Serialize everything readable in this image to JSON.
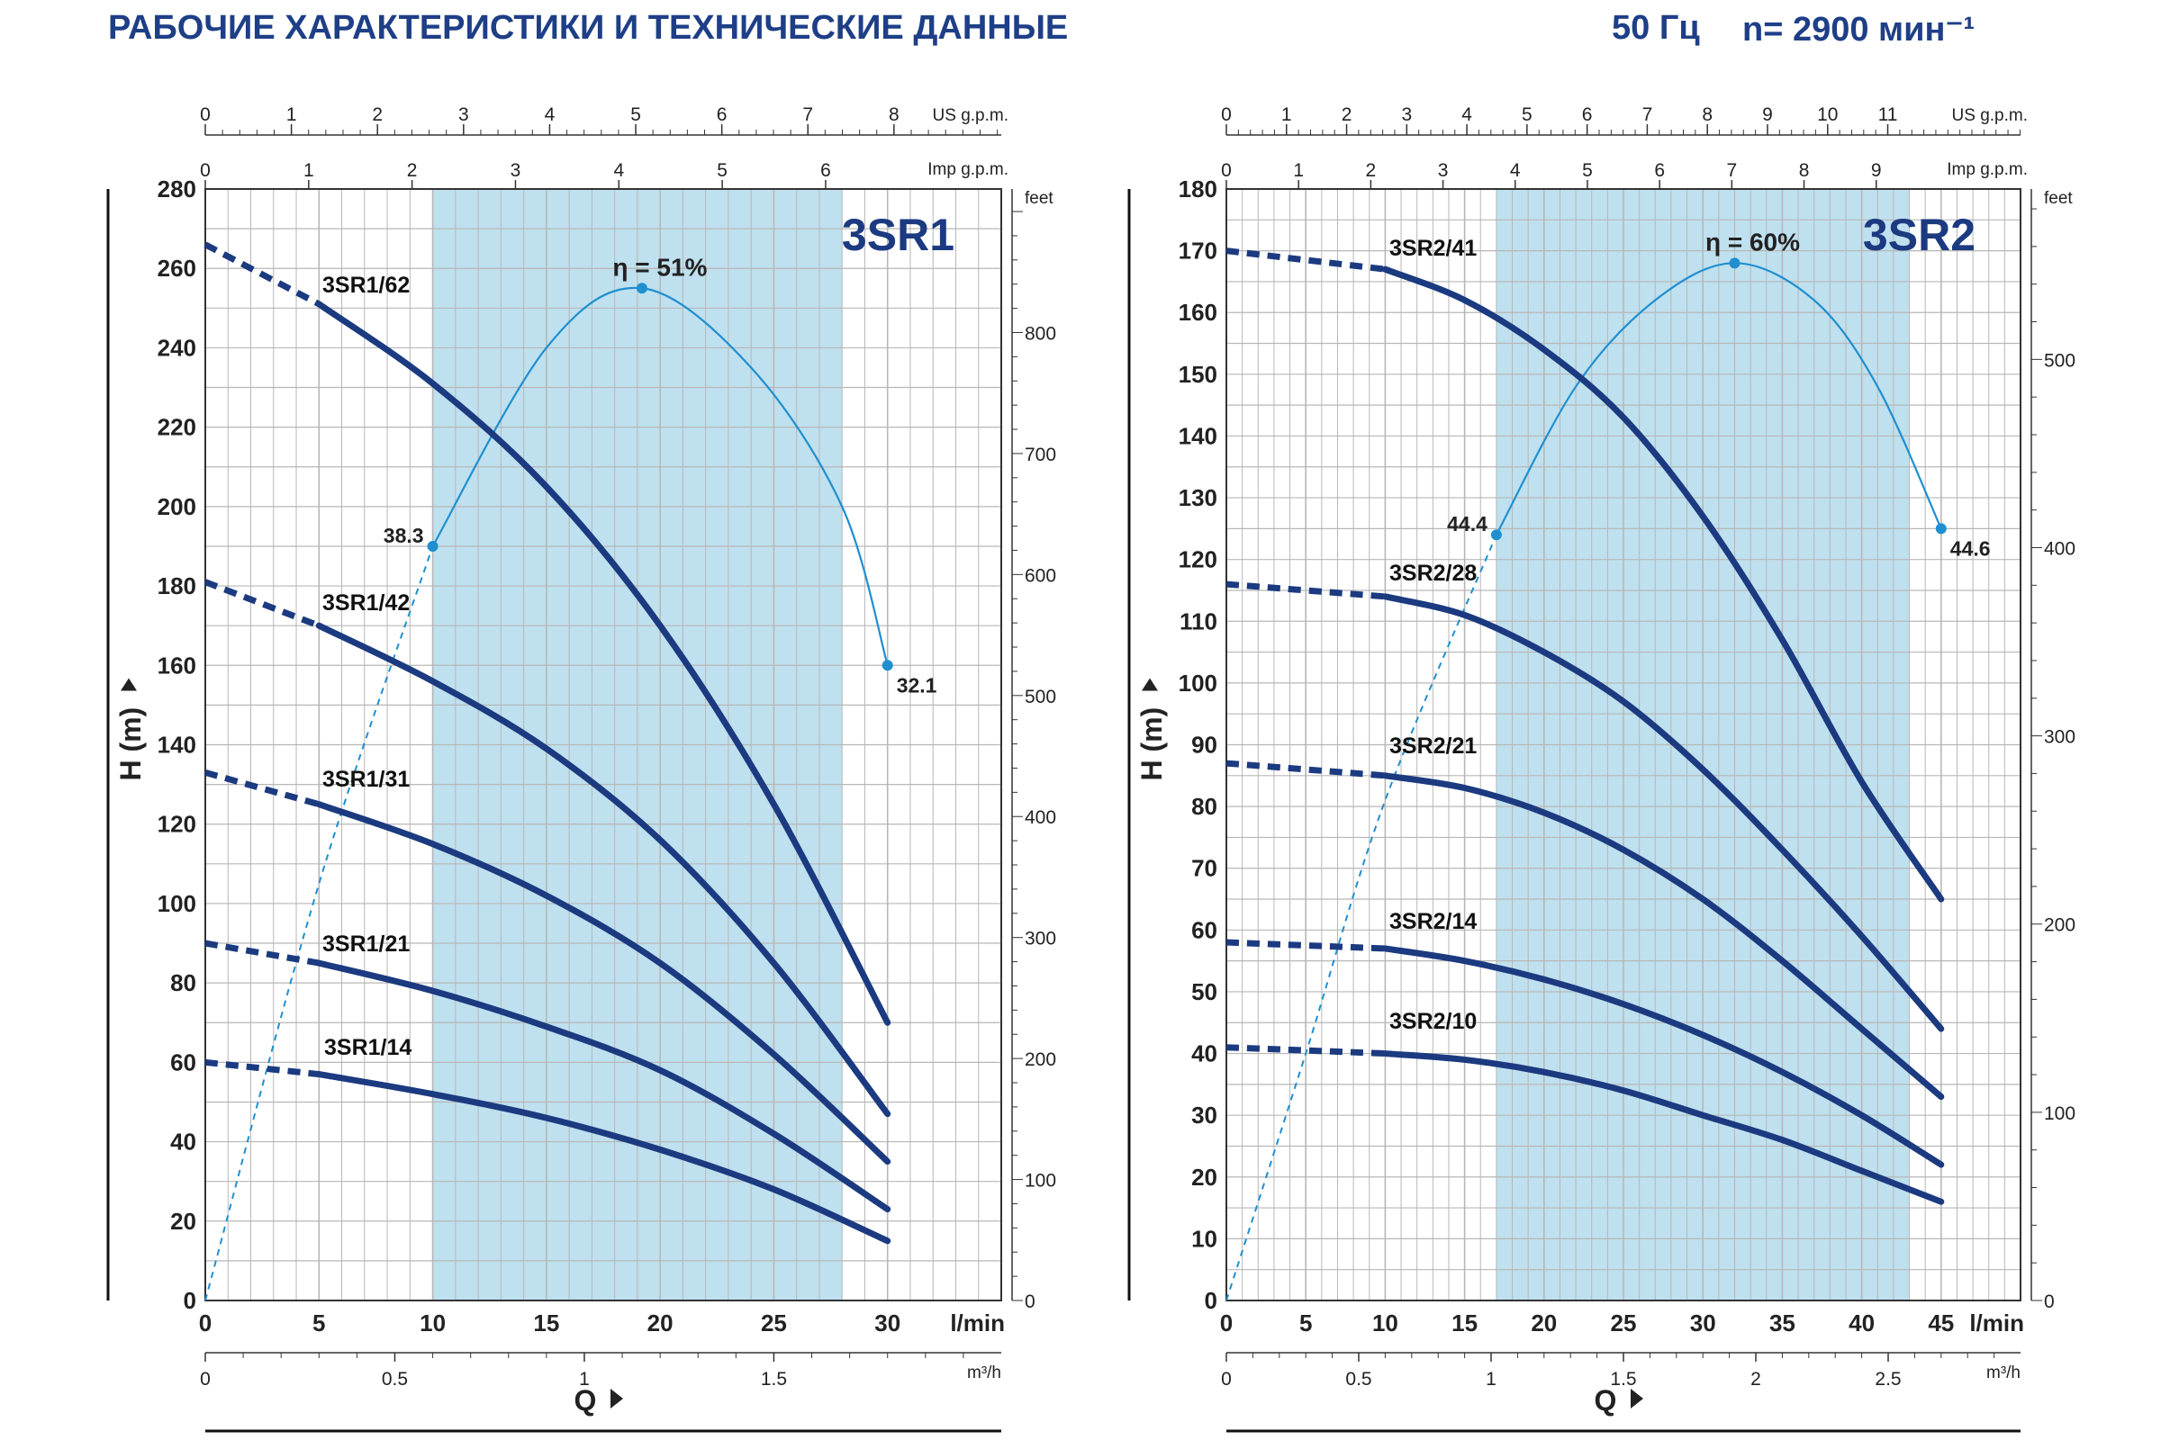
{
  "header": {
    "title": "РАБОЧИЕ ХАРАКТЕРИСТИКИ И ТЕХНИЧЕСКИЕ ДАННЫЕ",
    "frequency": "50 Гц",
    "speed": "n= 2900 мин⁻¹"
  },
  "colors": {
    "curve": "#1b3a80",
    "efficiency": "#1f8fd0",
    "shade": "#bfe0ee",
    "grid": "#b7b7b7",
    "text": "#222222"
  },
  "chart_data": [
    {
      "type": "line",
      "title": "3SR1",
      "ylabel": "H (m)",
      "xlabel": "Q",
      "x_unit": "l/min",
      "xlim": [
        0,
        35
      ],
      "ylim": [
        0,
        280
      ],
      "yticks": [
        0,
        20,
        40,
        60,
        80,
        100,
        120,
        140,
        160,
        180,
        200,
        220,
        240,
        260,
        280
      ],
      "xticks": [
        0,
        5,
        10,
        15,
        20,
        25,
        30
      ],
      "secondary_axes": {
        "us_gpm": {
          "label": "US g.p.m.",
          "ticks": [
            0,
            1,
            2,
            3,
            4,
            5,
            6,
            7,
            8
          ]
        },
        "imp_gpm": {
          "label": "Imp g.p.m.",
          "ticks": [
            0,
            1,
            2,
            3,
            4,
            5,
            6
          ]
        },
        "m3h": {
          "label": "m³/h",
          "ticks": [
            0,
            0.5,
            1,
            1.5
          ]
        },
        "feet": {
          "label": "feet",
          "ticks": [
            0,
            100,
            200,
            300,
            400,
            500,
            600,
            700,
            800
          ]
        }
      },
      "recommended_range": [
        10,
        28
      ],
      "series": [
        {
          "name": "3SR1/62",
          "x": [
            0,
            5,
            10,
            15,
            20,
            25,
            30
          ],
          "y": [
            266,
            251,
            231,
            205,
            170,
            125,
            70
          ]
        },
        {
          "name": "3SR1/42",
          "x": [
            0,
            5,
            10,
            15,
            20,
            25,
            30
          ],
          "y": [
            181,
            170,
            156,
            139,
            116,
            85,
            47
          ]
        },
        {
          "name": "3SR1/31",
          "x": [
            0,
            5,
            10,
            15,
            20,
            25,
            30
          ],
          "y": [
            133,
            125,
            115,
            102,
            85,
            62,
            35
          ]
        },
        {
          "name": "3SR1/21",
          "x": [
            0,
            5,
            10,
            15,
            20,
            25,
            30
          ],
          "y": [
            90,
            85,
            78,
            69,
            58,
            42,
            23
          ]
        },
        {
          "name": "3SR1/14",
          "x": [
            0,
            5,
            10,
            15,
            20,
            25,
            30
          ],
          "y": [
            60,
            57,
            52,
            46,
            38,
            28,
            15
          ]
        }
      ],
      "efficiency": {
        "x": [
          0,
          5,
          10,
          15,
          19.2,
          24,
          28,
          30
        ],
        "y": [
          0,
          105,
          190,
          240,
          255,
          235,
          200,
          160
        ],
        "peak_label": "η = 51%",
        "points": [
          {
            "x": 10,
            "y": 190,
            "label": "38.3"
          },
          {
            "x": 19.2,
            "y": 255,
            "label": ""
          },
          {
            "x": 30,
            "y": 160,
            "label": "32.1"
          }
        ]
      }
    },
    {
      "type": "line",
      "title": "3SR2",
      "ylabel": "H (m)",
      "xlabel": "Q",
      "x_unit": "l/min",
      "xlim": [
        0,
        50
      ],
      "ylim": [
        0,
        180
      ],
      "yticks": [
        0,
        10,
        20,
        30,
        40,
        50,
        60,
        70,
        80,
        90,
        100,
        110,
        120,
        130,
        140,
        150,
        160,
        170,
        180
      ],
      "xticks": [
        0,
        5,
        10,
        15,
        20,
        25,
        30,
        35,
        40,
        45
      ],
      "secondary_axes": {
        "us_gpm": {
          "label": "US g.p.m.",
          "ticks": [
            0,
            1,
            2,
            3,
            4,
            5,
            6,
            7,
            8,
            9,
            10,
            11
          ]
        },
        "imp_gpm": {
          "label": "Imp g.p.m.",
          "ticks": [
            0,
            1,
            2,
            3,
            4,
            5,
            6,
            7,
            8,
            9
          ]
        },
        "m3h": {
          "label": "m³/h",
          "ticks": [
            0,
            0.5,
            1,
            1.5,
            2,
            2.5
          ]
        },
        "feet": {
          "label": "feet",
          "ticks": [
            0,
            100,
            200,
            300,
            400,
            500
          ]
        }
      },
      "recommended_range": [
        17,
        43
      ],
      "series": [
        {
          "name": "3SR2/41",
          "x": [
            0,
            10,
            15,
            20,
            25,
            30,
            35,
            40,
            45
          ],
          "y": [
            170,
            167,
            162,
            154,
            143,
            127,
            107,
            84,
            65
          ]
        },
        {
          "name": "3SR2/28",
          "x": [
            0,
            10,
            15,
            20,
            25,
            30,
            35,
            40,
            45
          ],
          "y": [
            116,
            114,
            111,
            105,
            97,
            86,
            73,
            59,
            44
          ]
        },
        {
          "name": "3SR2/21",
          "x": [
            0,
            10,
            15,
            20,
            25,
            30,
            35,
            40,
            45
          ],
          "y": [
            87,
            85,
            83,
            79,
            73,
            65,
            55,
            44,
            33
          ]
        },
        {
          "name": "3SR2/14",
          "x": [
            0,
            10,
            15,
            20,
            25,
            30,
            35,
            40,
            45
          ],
          "y": [
            58,
            57,
            55,
            52,
            48,
            43,
            37,
            30,
            22
          ]
        },
        {
          "name": "3SR2/10",
          "x": [
            0,
            10,
            15,
            20,
            25,
            30,
            35,
            40,
            45
          ],
          "y": [
            41,
            40,
            39,
            37,
            34,
            30,
            26,
            21,
            16
          ]
        }
      ],
      "efficiency": {
        "x": [
          0,
          5,
          10,
          17,
          22,
          27,
          32,
          37,
          41,
          45
        ],
        "y": [
          0,
          40,
          81,
          124,
          148,
          162,
          168,
          162,
          148,
          125
        ],
        "peak_label": "η = 60%",
        "points": [
          {
            "x": 17,
            "y": 124,
            "label": "44.4"
          },
          {
            "x": 32,
            "y": 168,
            "label": ""
          },
          {
            "x": 45,
            "y": 125,
            "label": "44.6"
          }
        ]
      }
    }
  ]
}
